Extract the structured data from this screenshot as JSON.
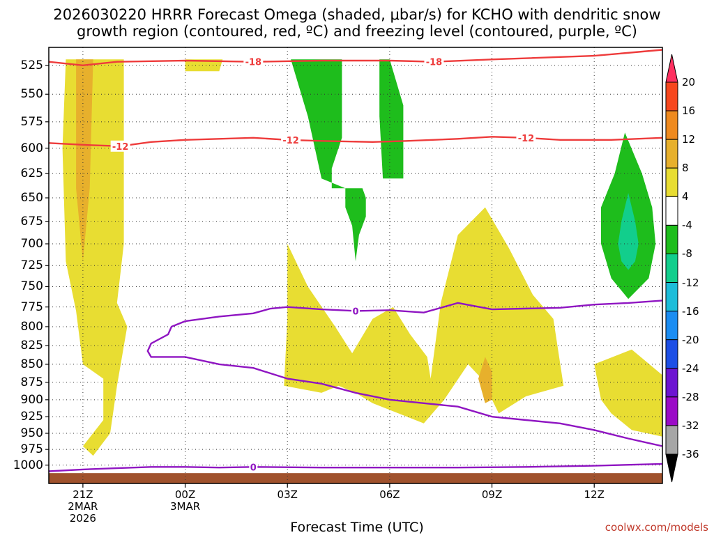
{
  "title": {
    "line1": "2026030220 HRRR Forecast Omega (shaded, μbar/s) for KCHO with dendritic snow",
    "line2": "growth region (contoured, red, ºC) and freezing level (contoured, purple, ºC)"
  },
  "credit": "coolwx.com/models",
  "chart_data": {
    "type": "heatmap",
    "title": "2026030220 HRRR Forecast Omega (shaded, μbar/s) for KCHO with dendritic snow growth region (contoured, red, ºC) and freezing level (contoured, purple, ºC)",
    "xlabel": "Forecast Time (UTC)",
    "ylabel": "",
    "x_ticks": [
      {
        "label": "21Z",
        "sub1": "2MAR",
        "sub2": "2026",
        "hours": 1
      },
      {
        "label": "00Z",
        "sub1": "3MAR",
        "sub2": "",
        "hours": 4
      },
      {
        "label": "03Z",
        "sub1": "",
        "sub2": "",
        "hours": 7
      },
      {
        "label": "06Z",
        "sub1": "",
        "sub2": "",
        "hours": 10
      },
      {
        "label": "09Z",
        "sub1": "",
        "sub2": "",
        "hours": 13
      },
      {
        "label": "12Z",
        "sub1": "",
        "sub2": "",
        "hours": 16
      }
    ],
    "xlim": [
      0,
      18
    ],
    "ylim": [
      510,
      1030
    ],
    "y_scale": "log-pressure (inverted)",
    "y_ticks": [
      525,
      550,
      575,
      600,
      625,
      650,
      675,
      700,
      725,
      750,
      775,
      800,
      825,
      850,
      875,
      900,
      925,
      950,
      975,
      1000
    ],
    "grid": true,
    "colorbar": {
      "unit": "μbar/s",
      "labels": [
        "20",
        "16",
        "12",
        "8",
        "4",
        "-4",
        "-8",
        "-12",
        "-16",
        "-20",
        "-24",
        "-28",
        "-32",
        "-36"
      ],
      "colors": [
        "#ff3060",
        "#f7471e",
        "#ef8a1f",
        "#e7b02c",
        "#e8dd32",
        "#ffffff",
        "#1ebd1c",
        "#12ce8c",
        "#1dbdd9",
        "#1b8df2",
        "#1d4fe6",
        "#6d14d1",
        "#9b0bc7",
        "#a6a6a6",
        "#000000"
      ]
    },
    "shaded_regions": [
      {
        "value_range": "4 to 8",
        "color": "#e8dd32",
        "points": [
          [
            0.5,
            520
          ],
          [
            2.2,
            520
          ],
          [
            2.2,
            700
          ],
          [
            2.0,
            770
          ],
          [
            2.3,
            800
          ],
          [
            2.0,
            880
          ],
          [
            1.8,
            950
          ],
          [
            1.3,
            985
          ],
          [
            1.0,
            970
          ],
          [
            1.6,
            930
          ],
          [
            1.6,
            870
          ],
          [
            1.0,
            850
          ],
          [
            0.8,
            780
          ],
          [
            0.5,
            720
          ],
          [
            0.4,
            600
          ]
        ]
      },
      {
        "value_range": "4 to 8",
        "color": "#e8dd32",
        "points": [
          [
            4.0,
            520
          ],
          [
            5.1,
            520
          ],
          [
            5.0,
            530
          ],
          [
            4.0,
            530
          ]
        ]
      },
      {
        "value_range": "4 to 8",
        "color": "#e8dd32",
        "points": [
          [
            7.0,
            700
          ],
          [
            7.6,
            750
          ],
          [
            8.4,
            800
          ],
          [
            8.9,
            835
          ],
          [
            9.5,
            790
          ],
          [
            10.1,
            775
          ],
          [
            10.6,
            810
          ],
          [
            11.1,
            840
          ],
          [
            11.2,
            870
          ],
          [
            11.5,
            770
          ],
          [
            12.0,
            690
          ],
          [
            12.8,
            660
          ],
          [
            13.5,
            705
          ],
          [
            14.2,
            760
          ],
          [
            14.8,
            790
          ],
          [
            15.1,
            880
          ],
          [
            14.0,
            895
          ],
          [
            13.2,
            920
          ],
          [
            12.7,
            870
          ],
          [
            12.3,
            850
          ],
          [
            11.6,
            900
          ],
          [
            11.0,
            935
          ],
          [
            9.5,
            905
          ],
          [
            9.0,
            890
          ],
          [
            8.5,
            880
          ],
          [
            8.0,
            890
          ],
          [
            6.9,
            880
          ],
          [
            7.0,
            790
          ]
        ]
      },
      {
        "value_range": "4 to 8",
        "color": "#e8dd32",
        "points": [
          [
            16.0,
            850
          ],
          [
            17.1,
            830
          ],
          [
            18.0,
            865
          ],
          [
            18.0,
            955
          ],
          [
            17.1,
            945
          ],
          [
            16.5,
            920
          ],
          [
            16.2,
            900
          ]
        ]
      },
      {
        "value_range": "8 to 12",
        "color": "#e7b02c",
        "points": [
          [
            0.8,
            520
          ],
          [
            1.3,
            520
          ],
          [
            1.2,
            640
          ],
          [
            1.0,
            720
          ],
          [
            0.8,
            640
          ]
        ]
      },
      {
        "value_range": "8 to 12",
        "color": "#e7b02c",
        "points": [
          [
            12.8,
            840
          ],
          [
            13.0,
            860
          ],
          [
            13.0,
            900
          ],
          [
            12.8,
            905
          ],
          [
            12.6,
            870
          ]
        ]
      },
      {
        "value_range": "-4 to -8",
        "color": "#1ebd1c",
        "points": [
          [
            7.1,
            520
          ],
          [
            8.6,
            520
          ],
          [
            8.6,
            590
          ],
          [
            8.3,
            620
          ],
          [
            8.3,
            640
          ],
          [
            9.2,
            640
          ],
          [
            9.3,
            650
          ],
          [
            9.3,
            670
          ],
          [
            9.1,
            690
          ],
          [
            9.0,
            720
          ],
          [
            8.9,
            680
          ],
          [
            8.7,
            660
          ],
          [
            8.7,
            640
          ],
          [
            8.0,
            630
          ],
          [
            7.6,
            570
          ]
        ]
      },
      {
        "value_range": "-4 to -8",
        "color": "#1ebd1c",
        "points": [
          [
            9.7,
            520
          ],
          [
            10.0,
            520
          ],
          [
            10.4,
            560
          ],
          [
            10.4,
            630
          ],
          [
            9.8,
            630
          ],
          [
            9.7,
            570
          ]
        ]
      },
      {
        "value_range": "-4 to -8",
        "color": "#1ebd1c",
        "points": [
          [
            16.9,
            585
          ],
          [
            17.4,
            625
          ],
          [
            17.7,
            660
          ],
          [
            17.8,
            700
          ],
          [
            17.6,
            740
          ],
          [
            17.0,
            765
          ],
          [
            16.5,
            740
          ],
          [
            16.2,
            700
          ],
          [
            16.2,
            660
          ],
          [
            16.6,
            625
          ]
        ]
      },
      {
        "value_range": "-8 to -12",
        "color": "#12ce8c",
        "points": [
          [
            17.0,
            645
          ],
          [
            17.2,
            675
          ],
          [
            17.3,
            700
          ],
          [
            17.2,
            720
          ],
          [
            17.0,
            730
          ],
          [
            16.8,
            720
          ],
          [
            16.7,
            700
          ],
          [
            16.8,
            675
          ]
        ]
      }
    ],
    "red_contours": [
      {
        "label": "-18",
        "label_at": [
          [
            6.0,
            522
          ],
          [
            11.3,
            522
          ]
        ],
        "points": [
          [
            0,
            522
          ],
          [
            1.0,
            525
          ],
          [
            2.0,
            522
          ],
          [
            4.0,
            521
          ],
          [
            6.0,
            522
          ],
          [
            8.0,
            521
          ],
          [
            10.0,
            521
          ],
          [
            11.3,
            522
          ],
          [
            13.0,
            520
          ],
          [
            16.0,
            517
          ],
          [
            18.0,
            512
          ]
        ]
      },
      {
        "label": "-12",
        "label_at": [
          [
            2.1,
            598
          ],
          [
            7.1,
            592
          ],
          [
            14.0,
            590
          ]
        ],
        "points": [
          [
            0,
            595
          ],
          [
            1.2,
            597
          ],
          [
            2.1,
            598
          ],
          [
            3.0,
            594
          ],
          [
            4.0,
            592
          ],
          [
            5.0,
            591
          ],
          [
            6.0,
            590
          ],
          [
            7.0,
            592
          ],
          [
            8.0,
            593
          ],
          [
            9.5,
            594
          ],
          [
            10.5,
            593
          ],
          [
            12.0,
            591
          ],
          [
            13.0,
            589
          ],
          [
            14.0,
            590
          ],
          [
            15.0,
            592
          ],
          [
            16.5,
            592
          ],
          [
            18.0,
            590
          ]
        ]
      }
    ],
    "purple_contours": [
      {
        "label": "0",
        "label_at": [
          [
            9.0,
            780
          ]
        ],
        "points": [
          [
            18.0,
            767
          ],
          [
            17.0,
            770
          ],
          [
            16.0,
            772
          ],
          [
            15.0,
            776
          ],
          [
            13.0,
            778
          ],
          [
            12.0,
            770
          ],
          [
            11.0,
            782
          ],
          [
            10.0,
            779
          ],
          [
            9.0,
            780
          ],
          [
            8.0,
            778
          ],
          [
            7.0,
            775
          ],
          [
            6.5,
            777
          ],
          [
            6.0,
            783
          ],
          [
            5.0,
            787
          ],
          [
            4.0,
            793
          ],
          [
            3.6,
            800
          ],
          [
            3.5,
            810
          ],
          [
            3.0,
            822
          ],
          [
            2.9,
            832
          ],
          [
            3.0,
            840
          ],
          [
            4.0,
            840
          ],
          [
            5.0,
            850
          ],
          [
            6.0,
            855
          ],
          [
            7.0,
            870
          ],
          [
            8.0,
            877
          ],
          [
            9.0,
            890
          ],
          [
            10.0,
            900
          ],
          [
            11.0,
            905
          ],
          [
            12.0,
            910
          ],
          [
            13.0,
            925
          ],
          [
            14.0,
            930
          ],
          [
            15.0,
            935
          ],
          [
            16.0,
            945
          ],
          [
            17.0,
            958
          ],
          [
            18.0,
            970
          ]
        ]
      },
      {
        "label": "0",
        "label_at": [
          [
            6.0,
            1003
          ]
        ],
        "points": [
          [
            0,
            1010
          ],
          [
            1.0,
            1007
          ],
          [
            2.0,
            1005
          ],
          [
            3.0,
            1003
          ],
          [
            4.0,
            1003
          ],
          [
            5.0,
            1004
          ],
          [
            6.0,
            1003
          ],
          [
            8.0,
            1004
          ],
          [
            10.0,
            1004
          ],
          [
            12.0,
            1004
          ],
          [
            14.0,
            1003
          ],
          [
            16.0,
            1001
          ],
          [
            18.0,
            998
          ]
        ]
      }
    ],
    "surface": {
      "pressure": 1013,
      "color": "#a0522d"
    }
  }
}
